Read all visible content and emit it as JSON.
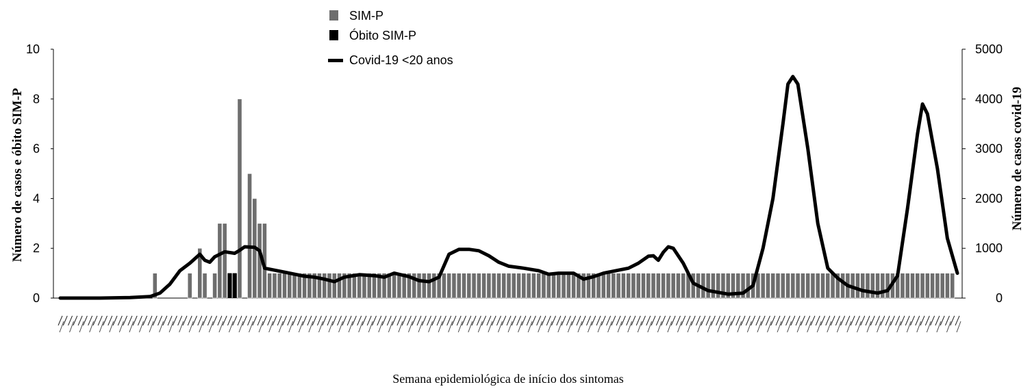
{
  "chart_data": {
    "type": "bar",
    "title": "",
    "xlabel": "Semana epidemiológica de início dos sintomas",
    "ylabel_left": "Número de casos e óbito SIM-P",
    "ylabel_right": "Número de casos covid-19",
    "ylim_left": [
      0,
      10
    ],
    "ylim_right": [
      0,
      5000
    ],
    "yticks_left": [
      "0",
      "2",
      "4",
      "6",
      "8",
      "10"
    ],
    "yticks_right": [
      "0",
      "1000",
      "2000",
      "3000",
      "4000",
      "5000"
    ],
    "legend": {
      "position": "top-left",
      "entries": [
        {
          "label": "SIM-P",
          "color": "#6e6e6e",
          "kind": "bar"
        },
        {
          "label": "Óbito SIM-P",
          "color": "#000000",
          "kind": "bar"
        },
        {
          "label": "Covid-19 <20 anos",
          "color": "#000000",
          "kind": "line"
        }
      ]
    },
    "colors": {
      "sim_p": "#6e6e6e",
      "obito": "#000000",
      "covid": "#000000"
    },
    "n_weeks": 180,
    "series": [
      {
        "name": "SIM-P",
        "axis": "left",
        "type": "bar",
        "points": [
          [
            19,
            1
          ],
          [
            26,
            1
          ],
          [
            28,
            2
          ],
          [
            29,
            1
          ],
          [
            31,
            1
          ],
          [
            32,
            3
          ],
          [
            33,
            3
          ],
          [
            34,
            1
          ],
          [
            35,
            1
          ],
          [
            36,
            8
          ],
          [
            38,
            5
          ],
          [
            39,
            4
          ],
          [
            40,
            3
          ],
          [
            41,
            3
          ],
          [
            42,
            1
          ],
          [
            43,
            1
          ],
          [
            44,
            1
          ],
          [
            45,
            1
          ],
          [
            46,
            1
          ],
          [
            47,
            1
          ],
          [
            48,
            1
          ],
          [
            49,
            1
          ],
          [
            50,
            1
          ],
          [
            51,
            1
          ],
          [
            52,
            1
          ],
          [
            53,
            1
          ],
          [
            54,
            1
          ],
          [
            55,
            1
          ],
          [
            56,
            1
          ],
          [
            57,
            1
          ],
          [
            58,
            1
          ],
          [
            59,
            1
          ],
          [
            60,
            1
          ],
          [
            61,
            1
          ],
          [
            62,
            1
          ],
          [
            63,
            1
          ],
          [
            64,
            1
          ],
          [
            65,
            1
          ],
          [
            66,
            1
          ],
          [
            67,
            1
          ],
          [
            68,
            1
          ],
          [
            69,
            1
          ],
          [
            70,
            1
          ],
          [
            71,
            1
          ],
          [
            72,
            1
          ],
          [
            73,
            1
          ],
          [
            74,
            1
          ],
          [
            75,
            1
          ],
          [
            76,
            1
          ],
          [
            77,
            1
          ],
          [
            78,
            1
          ],
          [
            79,
            1
          ],
          [
            80,
            1
          ],
          [
            81,
            1
          ],
          [
            82,
            1
          ],
          [
            83,
            1
          ],
          [
            84,
            1
          ],
          [
            85,
            1
          ],
          [
            86,
            1
          ],
          [
            87,
            1
          ],
          [
            88,
            1
          ],
          [
            89,
            1
          ],
          [
            90,
            1
          ],
          [
            91,
            1
          ],
          [
            92,
            1
          ],
          [
            93,
            1
          ],
          [
            94,
            1
          ],
          [
            95,
            1
          ],
          [
            96,
            1
          ],
          [
            97,
            1
          ],
          [
            98,
            1
          ],
          [
            99,
            1
          ],
          [
            100,
            1
          ],
          [
            101,
            1
          ],
          [
            102,
            1
          ],
          [
            103,
            1
          ],
          [
            104,
            1
          ],
          [
            105,
            1
          ],
          [
            106,
            1
          ],
          [
            107,
            1
          ],
          [
            108,
            1
          ],
          [
            109,
            1
          ],
          [
            110,
            1
          ],
          [
            111,
            1
          ],
          [
            112,
            1
          ],
          [
            113,
            1
          ],
          [
            114,
            1
          ],
          [
            115,
            1
          ],
          [
            116,
            1
          ],
          [
            117,
            1
          ],
          [
            118,
            1
          ],
          [
            119,
            1
          ],
          [
            120,
            1
          ],
          [
            121,
            1
          ],
          [
            122,
            1
          ],
          [
            123,
            1
          ],
          [
            124,
            1
          ],
          [
            125,
            1
          ],
          [
            126,
            1
          ],
          [
            127,
            1
          ],
          [
            128,
            1
          ],
          [
            129,
            1
          ],
          [
            130,
            1
          ],
          [
            131,
            1
          ],
          [
            132,
            1
          ],
          [
            133,
            1
          ],
          [
            134,
            1
          ],
          [
            135,
            1
          ],
          [
            136,
            1
          ],
          [
            137,
            1
          ],
          [
            138,
            1
          ],
          [
            139,
            1
          ],
          [
            140,
            1
          ],
          [
            141,
            1
          ],
          [
            142,
            1
          ],
          [
            143,
            1
          ],
          [
            144,
            1
          ],
          [
            145,
            1
          ],
          [
            146,
            1
          ],
          [
            147,
            1
          ],
          [
            148,
            1
          ],
          [
            149,
            1
          ],
          [
            150,
            1
          ],
          [
            151,
            1
          ],
          [
            152,
            1
          ],
          [
            153,
            1
          ],
          [
            154,
            1
          ],
          [
            155,
            1
          ],
          [
            156,
            1
          ],
          [
            157,
            1
          ],
          [
            158,
            1
          ],
          [
            159,
            1
          ],
          [
            160,
            1
          ],
          [
            161,
            1
          ],
          [
            162,
            1
          ],
          [
            163,
            1
          ],
          [
            164,
            1
          ],
          [
            165,
            1
          ],
          [
            166,
            1
          ],
          [
            167,
            1
          ],
          [
            168,
            1
          ],
          [
            169,
            1
          ],
          [
            170,
            1
          ],
          [
            171,
            1
          ],
          [
            172,
            1
          ],
          [
            173,
            1
          ],
          [
            174,
            1
          ],
          [
            175,
            1
          ],
          [
            176,
            1
          ],
          [
            177,
            1
          ],
          [
            178,
            1
          ],
          [
            179,
            1
          ]
        ]
      },
      {
        "name": "Óbito SIM-P",
        "axis": "left",
        "type": "bar",
        "points": [
          [
            34,
            1
          ],
          [
            35,
            1
          ]
        ]
      },
      {
        "name": "Covid-19 <20 anos",
        "axis": "right",
        "type": "line",
        "points": [
          [
            0,
            0
          ],
          [
            8,
            0
          ],
          [
            14,
            10
          ],
          [
            18,
            30
          ],
          [
            20,
            100
          ],
          [
            22,
            280
          ],
          [
            24,
            550
          ],
          [
            26,
            700
          ],
          [
            28,
            880
          ],
          [
            29,
            760
          ],
          [
            30,
            720
          ],
          [
            31,
            830
          ],
          [
            33,
            930
          ],
          [
            35,
            900
          ],
          [
            36,
            960
          ],
          [
            37,
            1030
          ],
          [
            39,
            1020
          ],
          [
            40,
            950
          ],
          [
            41,
            600
          ],
          [
            43,
            560
          ],
          [
            45,
            520
          ],
          [
            47,
            480
          ],
          [
            49,
            440
          ],
          [
            51,
            420
          ],
          [
            53,
            380
          ],
          [
            55,
            330
          ],
          [
            57,
            420
          ],
          [
            60,
            470
          ],
          [
            63,
            450
          ],
          [
            65,
            420
          ],
          [
            67,
            500
          ],
          [
            70,
            430
          ],
          [
            72,
            350
          ],
          [
            74,
            330
          ],
          [
            76,
            420
          ],
          [
            78,
            880
          ],
          [
            80,
            980
          ],
          [
            82,
            980
          ],
          [
            84,
            950
          ],
          [
            86,
            850
          ],
          [
            88,
            720
          ],
          [
            90,
            640
          ],
          [
            93,
            600
          ],
          [
            96,
            550
          ],
          [
            98,
            480
          ],
          [
            100,
            500
          ],
          [
            103,
            500
          ],
          [
            105,
            380
          ],
          [
            107,
            430
          ],
          [
            109,
            500
          ],
          [
            112,
            560
          ],
          [
            114,
            600
          ],
          [
            116,
            700
          ],
          [
            118,
            840
          ],
          [
            119,
            850
          ],
          [
            120,
            760
          ],
          [
            121,
            920
          ],
          [
            122,
            1030
          ],
          [
            123,
            1000
          ],
          [
            125,
            700
          ],
          [
            127,
            300
          ],
          [
            130,
            150
          ],
          [
            134,
            80
          ],
          [
            137,
            100
          ],
          [
            139,
            250
          ],
          [
            141,
            1000
          ],
          [
            143,
            2000
          ],
          [
            145,
            3500
          ],
          [
            146,
            4300
          ],
          [
            147,
            4450
          ],
          [
            148,
            4300
          ],
          [
            150,
            3000
          ],
          [
            152,
            1500
          ],
          [
            154,
            600
          ],
          [
            156,
            400
          ],
          [
            158,
            250
          ],
          [
            161,
            150
          ],
          [
            164,
            100
          ],
          [
            166,
            150
          ],
          [
            168,
            450
          ],
          [
            170,
            1800
          ],
          [
            172,
            3300
          ],
          [
            173,
            3900
          ],
          [
            174,
            3700
          ],
          [
            176,
            2600
          ],
          [
            178,
            1200
          ],
          [
            180,
            500
          ]
        ]
      }
    ]
  }
}
